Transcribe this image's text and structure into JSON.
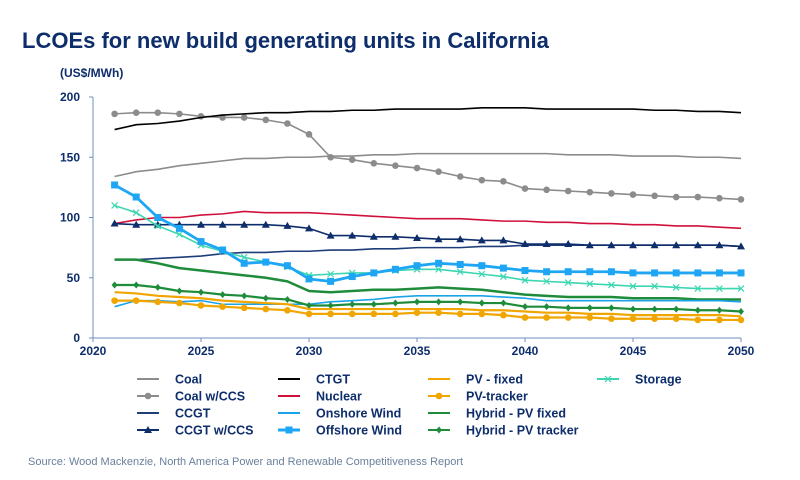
{
  "chart_data": {
    "type": "line",
    "title": "LCOEs for new build generating units in California",
    "ylabel": "(US$/MWh)",
    "xlabel": "",
    "xlim": [
      2020,
      2050
    ],
    "ylim": [
      0,
      200
    ],
    "xticks": [
      2020,
      2025,
      2030,
      2035,
      2040,
      2045,
      2050
    ],
    "yticks": [
      0,
      50,
      100,
      150,
      200
    ],
    "grid": false,
    "legend_position": "bottom",
    "source": "Source: Wood Mackenzie, North America Power and Renewable Competitiveness Report",
    "x": [
      2021,
      2022,
      2023,
      2024,
      2025,
      2026,
      2027,
      2028,
      2029,
      2030,
      2031,
      2032,
      2033,
      2034,
      2035,
      2036,
      2037,
      2038,
      2039,
      2040,
      2041,
      2042,
      2043,
      2044,
      2045,
      2046,
      2047,
      2048,
      2049,
      2050
    ],
    "series": [
      {
        "name": "Coal",
        "color": "#8c8c8c",
        "marker": "none",
        "values": [
          134,
          138,
          140,
          143,
          145,
          147,
          149,
          149,
          150,
          150,
          151,
          151,
          152,
          152,
          153,
          153,
          153,
          153,
          153,
          153,
          153,
          152,
          152,
          152,
          151,
          151,
          151,
          150,
          150,
          149
        ]
      },
      {
        "name": "Coal w/CCS",
        "color": "#8c8c8c",
        "marker": "circle",
        "values": [
          186,
          187,
          187,
          186,
          184,
          183,
          183,
          181,
          178,
          169,
          150,
          148,
          145,
          143,
          141,
          138,
          134,
          131,
          130,
          124,
          123,
          122,
          121,
          120,
          119,
          118,
          117,
          117,
          116,
          115
        ]
      },
      {
        "name": "CCGT",
        "color": "#1f3d7a",
        "marker": "none",
        "values": [
          65,
          65,
          66,
          67,
          68,
          70,
          71,
          71,
          72,
          72,
          73,
          73,
          74,
          74,
          75,
          75,
          75,
          76,
          76,
          77,
          77,
          77,
          77,
          77,
          77,
          77,
          77,
          77,
          77,
          76
        ]
      },
      {
        "name": "CCGT w/CCS",
        "color": "#0d2d6b",
        "marker": "triangle",
        "values": [
          95,
          94,
          94,
          94,
          94,
          94,
          94,
          94,
          93,
          91,
          85,
          85,
          84,
          84,
          83,
          82,
          82,
          81,
          81,
          78,
          78,
          78,
          77,
          77,
          77,
          77,
          77,
          77,
          77,
          76
        ]
      },
      {
        "name": "CTGT",
        "color": "#000000",
        "marker": "none",
        "values": [
          173,
          177,
          178,
          180,
          183,
          185,
          186,
          187,
          187,
          188,
          188,
          189,
          189,
          190,
          190,
          190,
          190,
          191,
          191,
          191,
          190,
          190,
          190,
          190,
          190,
          189,
          189,
          188,
          188,
          187
        ]
      },
      {
        "name": "Nuclear",
        "color": "#d0103a",
        "marker": "none",
        "values": [
          95,
          98,
          100,
          100,
          102,
          103,
          105,
          104,
          104,
          104,
          103,
          102,
          101,
          100,
          99,
          99,
          99,
          98,
          97,
          97,
          96,
          96,
          95,
          95,
          94,
          94,
          93,
          93,
          92,
          91
        ]
      },
      {
        "name": "Onshore Wind",
        "color": "#1aa3e8",
        "marker": "none",
        "values": [
          26,
          31,
          31,
          30,
          31,
          28,
          28,
          28,
          28,
          28,
          30,
          31,
          32,
          34,
          35,
          35,
          35,
          35,
          34,
          33,
          31,
          31,
          31,
          31,
          31,
          31,
          31,
          31,
          31,
          30
        ]
      },
      {
        "name": "Offshore Wind",
        "color": "#1ea6f5",
        "marker": "square",
        "values": [
          127,
          117,
          100,
          91,
          80,
          73,
          62,
          63,
          60,
          49,
          47,
          51,
          54,
          57,
          60,
          62,
          61,
          60,
          58,
          56,
          55,
          55,
          55,
          55,
          54,
          54,
          54,
          54,
          54,
          54
        ]
      },
      {
        "name": "PV - fixed",
        "color": "#f0a500",
        "marker": "none",
        "values": [
          38,
          37,
          35,
          34,
          33,
          31,
          30,
          29,
          28,
          24,
          24,
          24,
          24,
          24,
          24,
          24,
          24,
          23,
          23,
          22,
          21,
          21,
          20,
          20,
          19,
          19,
          19,
          19,
          19,
          18
        ]
      },
      {
        "name": "PV-tracker",
        "color": "#f0a500",
        "marker": "circle",
        "values": [
          31,
          31,
          30,
          29,
          27,
          26,
          25,
          24,
          23,
          20,
          20,
          20,
          20,
          20,
          21,
          21,
          20,
          20,
          19,
          17,
          17,
          17,
          17,
          16,
          16,
          16,
          16,
          15,
          15,
          15
        ]
      },
      {
        "name": "Hybrid - PV fixed",
        "color": "#1e8c3a",
        "marker": "none",
        "values": [
          65,
          65,
          62,
          58,
          56,
          54,
          52,
          50,
          47,
          39,
          38,
          39,
          40,
          40,
          41,
          42,
          41,
          40,
          38,
          36,
          35,
          34,
          34,
          34,
          33,
          33,
          33,
          32,
          32,
          32
        ]
      },
      {
        "name": "Hybrid - PV tracker",
        "color": "#1e8c3a",
        "marker": "diamond",
        "values": [
          44,
          44,
          42,
          39,
          38,
          36,
          35,
          33,
          32,
          27,
          27,
          28,
          28,
          29,
          30,
          30,
          30,
          29,
          29,
          26,
          26,
          25,
          25,
          25,
          24,
          24,
          24,
          23,
          23,
          22
        ]
      },
      {
        "name": "Storage",
        "color": "#3cd6b0",
        "marker": "x",
        "values": [
          110,
          104,
          93,
          86,
          77,
          72,
          67,
          63,
          59,
          52,
          53,
          54,
          54,
          56,
          57,
          57,
          55,
          53,
          51,
          48,
          47,
          46,
          45,
          44,
          43,
          43,
          42,
          41,
          41,
          41
        ]
      }
    ]
  }
}
